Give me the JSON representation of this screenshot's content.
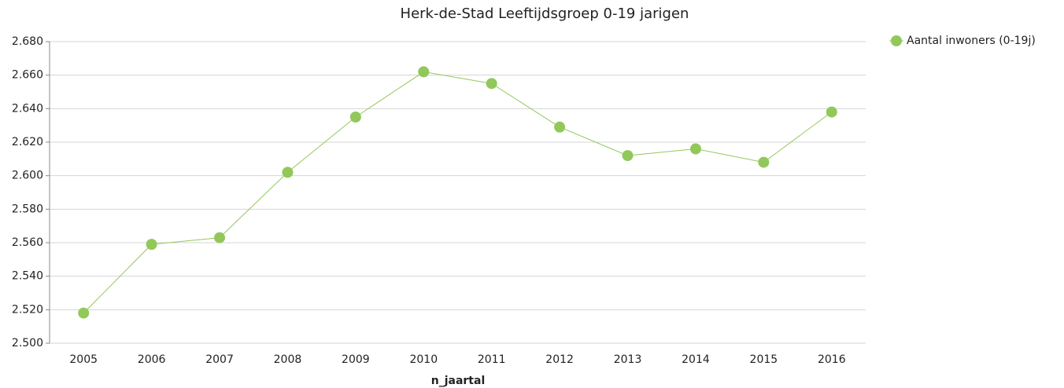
{
  "chart_data": {
    "type": "line",
    "title": "Herk-de-Stad  Leeftijdsgroep 0-19 jarigen",
    "x_label": "n_jaartal",
    "categories": [
      "2005",
      "2006",
      "2007",
      "2008",
      "2009",
      "2010",
      "2011",
      "2012",
      "2013",
      "2014",
      "2015",
      "2016"
    ],
    "series": [
      {
        "name": "Aantal inwoners (0-19j)",
        "color": "#92c85a",
        "values": [
          2518,
          2559,
          2563,
          2602,
          2635,
          2662,
          2655,
          2629,
          2612,
          2616,
          2608,
          2638
        ]
      }
    ],
    "ylim": [
      2500,
      2680
    ],
    "yticks": [
      {
        "value": 2500,
        "label": "2.500"
      },
      {
        "value": 2520,
        "label": "2.520"
      },
      {
        "value": 2540,
        "label": "2.540"
      },
      {
        "value": 2560,
        "label": "2.560"
      },
      {
        "value": 2580,
        "label": "2.580"
      },
      {
        "value": 2600,
        "label": "2.600"
      },
      {
        "value": 2620,
        "label": "2.620"
      },
      {
        "value": 2640,
        "label": "2.640"
      },
      {
        "value": 2660,
        "label": "2.660"
      },
      {
        "value": 2680,
        "label": "2.680"
      }
    ],
    "grid": true,
    "legend": "right"
  }
}
